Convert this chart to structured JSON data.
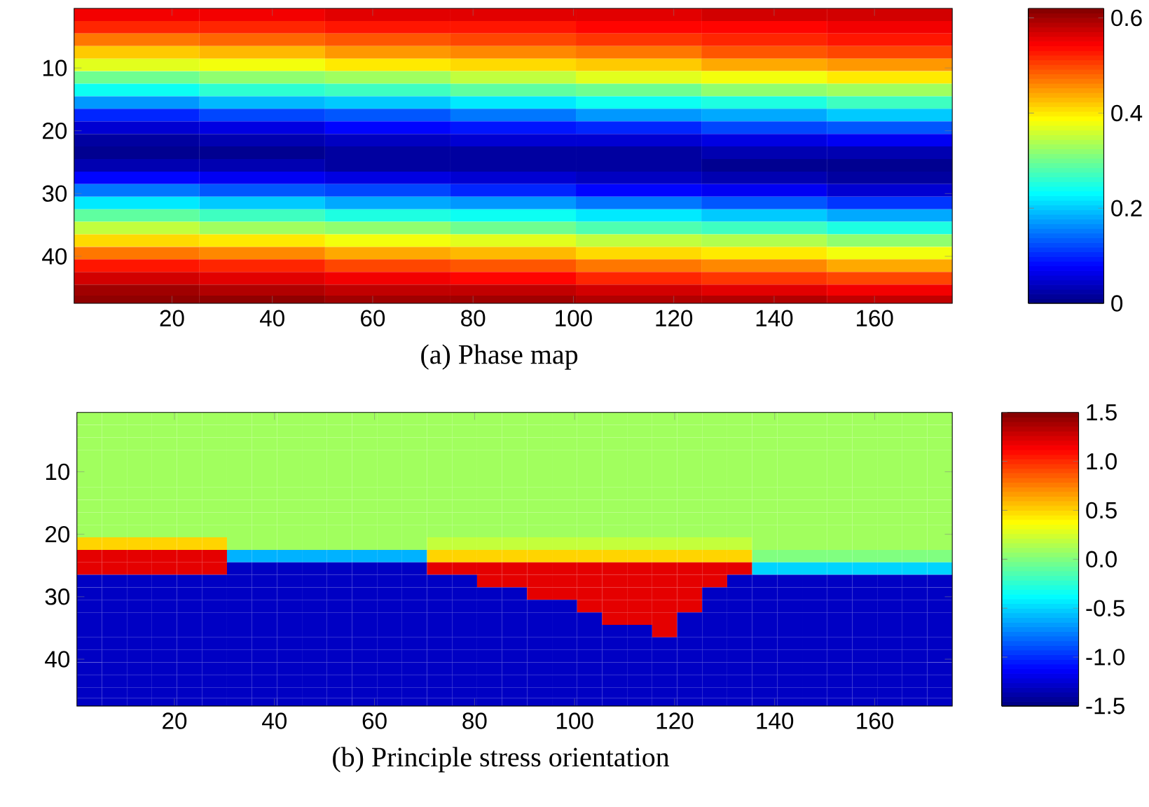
{
  "chart_data": [
    {
      "type": "heatmap",
      "x": [
        13,
        38,
        63,
        88,
        113,
        138,
        163
      ],
      "y": [
        1.5,
        3.5,
        5.5,
        7.5,
        9.5,
        11.5,
        13.5,
        15.5,
        17.5,
        19.5,
        21.5,
        23.5,
        25.5,
        27.5,
        29.5,
        31.5,
        33.5,
        35.5,
        37.5,
        39.5,
        41.5,
        43.5,
        45.5,
        47
      ],
      "xlim": [
        0.5,
        175.5
      ],
      "ylim": [
        47.5,
        0.5
      ],
      "xticks": [
        20,
        40,
        60,
        80,
        100,
        120,
        140,
        160
      ],
      "yticks": [
        10,
        20,
        30,
        40
      ],
      "clim": [
        0,
        0.62
      ],
      "cticks": [
        0,
        0.2,
        0.4,
        0.6
      ],
      "annotations": [
        "(a) Phase map"
      ],
      "cells": [
        [
          0.55,
          0.55,
          0.56,
          0.56,
          0.56,
          0.57,
          0.57
        ],
        [
          0.52,
          0.52,
          0.53,
          0.53,
          0.54,
          0.54,
          0.55
        ],
        [
          0.47,
          0.48,
          0.49,
          0.5,
          0.51,
          0.52,
          0.53
        ],
        [
          0.42,
          0.43,
          0.45,
          0.46,
          0.47,
          0.49,
          0.5
        ],
        [
          0.37,
          0.38,
          0.4,
          0.41,
          0.42,
          0.44,
          0.45
        ],
        [
          0.3,
          0.32,
          0.33,
          0.35,
          0.37,
          0.38,
          0.4
        ],
        [
          0.24,
          0.26,
          0.27,
          0.29,
          0.3,
          0.32,
          0.33
        ],
        [
          0.17,
          0.19,
          0.2,
          0.22,
          0.24,
          0.25,
          0.27
        ],
        [
          0.1,
          0.12,
          0.13,
          0.15,
          0.17,
          0.18,
          0.2
        ],
        [
          0.05,
          0.06,
          0.08,
          0.09,
          0.1,
          0.12,
          0.13
        ],
        [
          0.02,
          0.03,
          0.04,
          0.05,
          0.05,
          0.06,
          0.07
        ],
        [
          0.01,
          0.01,
          0.02,
          0.02,
          0.02,
          0.03,
          0.03
        ],
        [
          0.03,
          0.03,
          0.02,
          0.02,
          0.02,
          0.01,
          0.01
        ],
        [
          0.08,
          0.07,
          0.06,
          0.05,
          0.04,
          0.03,
          0.02
        ],
        [
          0.15,
          0.13,
          0.12,
          0.1,
          0.08,
          0.07,
          0.05
        ],
        [
          0.22,
          0.2,
          0.18,
          0.17,
          0.15,
          0.13,
          0.11
        ],
        [
          0.29,
          0.27,
          0.25,
          0.24,
          0.22,
          0.2,
          0.18
        ],
        [
          0.35,
          0.33,
          0.32,
          0.3,
          0.28,
          0.27,
          0.25
        ],
        [
          0.41,
          0.4,
          0.38,
          0.37,
          0.35,
          0.34,
          0.32
        ],
        [
          0.47,
          0.46,
          0.44,
          0.43,
          0.41,
          0.4,
          0.38
        ],
        [
          0.53,
          0.52,
          0.5,
          0.49,
          0.47,
          0.46,
          0.44
        ],
        [
          0.57,
          0.56,
          0.55,
          0.54,
          0.52,
          0.51,
          0.5
        ],
        [
          0.6,
          0.59,
          0.58,
          0.58,
          0.57,
          0.56,
          0.55
        ],
        [
          0.61,
          0.61,
          0.6,
          0.6,
          0.59,
          0.59,
          0.58
        ]
      ]
    },
    {
      "type": "heatmap",
      "x": [
        3,
        8,
        13,
        18,
        23,
        28,
        33,
        38,
        43,
        48,
        53,
        58,
        63,
        68,
        73,
        78,
        83,
        88,
        93,
        98,
        103,
        108,
        113,
        118,
        123,
        128,
        133,
        138,
        143,
        148,
        153,
        158,
        163,
        168,
        173
      ],
      "y": [
        1.5,
        3.5,
        5.5,
        7.5,
        9.5,
        11.5,
        13.5,
        15.5,
        17.5,
        19.5,
        21.5,
        23.5,
        25.5,
        27.5,
        29.5,
        31.5,
        33.5,
        35.5,
        37.5,
        39.5,
        41.5,
        43.5,
        45.5,
        47
      ],
      "xlim": [
        0.5,
        175.5
      ],
      "ylim": [
        47.5,
        0.5
      ],
      "xticks": [
        20,
        40,
        60,
        80,
        100,
        120,
        140,
        160
      ],
      "yticks": [
        10,
        20,
        30,
        40
      ],
      "clim": [
        -1.5,
        1.5
      ],
      "cticks": [
        {
          "value": -1.5,
          "label": "-1.5"
        },
        {
          "value": -1,
          "label": "-1.0"
        },
        {
          "value": -0.5,
          "label": "-0.5"
        },
        {
          "value": 0,
          "label": "0.0"
        },
        {
          "value": 0.5,
          "label": "0.5"
        },
        {
          "value": 1,
          "label": "1.0"
        },
        {
          "value": 1.5,
          "label": "1.5"
        }
      ],
      "annotations": [
        "(b) Principle stress orientation"
      ],
      "cells": [
        [
          0.1,
          0.1,
          0.1,
          0.1,
          0.1,
          0.1,
          0.1,
          0.1,
          0.1,
          0.1,
          0.1,
          0.1,
          0.1,
          0.1,
          0.1,
          0.1,
          0.1,
          0.1,
          0.1,
          0.1,
          0.1,
          0.1,
          0.1,
          0.1,
          0.1,
          0.1,
          0.1,
          0.1,
          0.1,
          0.1,
          0.1,
          0.1,
          0.1,
          0.1,
          0.1
        ],
        [
          0.1,
          0.1,
          0.1,
          0.1,
          0.1,
          0.1,
          0.1,
          0.1,
          0.1,
          0.1,
          0.1,
          0.1,
          0.1,
          0.1,
          0.1,
          0.1,
          0.1,
          0.1,
          0.1,
          0.1,
          0.1,
          0.1,
          0.1,
          0.1,
          0.1,
          0.1,
          0.1,
          0.1,
          0.1,
          0.1,
          0.1,
          0.1,
          0.1,
          0.1,
          0.1
        ],
        [
          0.1,
          0.1,
          0.1,
          0.1,
          0.1,
          0.1,
          0.1,
          0.1,
          0.1,
          0.1,
          0.1,
          0.1,
          0.1,
          0.1,
          0.1,
          0.1,
          0.1,
          0.1,
          0.1,
          0.1,
          0.1,
          0.1,
          0.1,
          0.1,
          0.1,
          0.1,
          0.1,
          0.1,
          0.1,
          0.1,
          0.1,
          0.1,
          0.1,
          0.1,
          0.1
        ],
        [
          0.1,
          0.1,
          0.1,
          0.1,
          0.1,
          0.1,
          0.1,
          0.1,
          0.1,
          0.1,
          0.1,
          0.1,
          0.1,
          0.1,
          0.1,
          0.1,
          0.1,
          0.1,
          0.1,
          0.1,
          0.1,
          0.1,
          0.1,
          0.1,
          0.1,
          0.1,
          0.1,
          0.1,
          0.1,
          0.1,
          0.1,
          0.1,
          0.1,
          0.1,
          0.1
        ],
        [
          0.1,
          0.1,
          0.1,
          0.1,
          0.1,
          0.1,
          0.1,
          0.1,
          0.1,
          0.1,
          0.1,
          0.1,
          0.1,
          0.1,
          0.1,
          0.1,
          0.1,
          0.1,
          0.1,
          0.1,
          0.1,
          0.1,
          0.1,
          0.1,
          0.1,
          0.1,
          0.1,
          0.1,
          0.1,
          0.1,
          0.1,
          0.1,
          0.1,
          0.1,
          0.1
        ],
        [
          0.1,
          0.1,
          0.1,
          0.1,
          0.1,
          0.1,
          0.1,
          0.1,
          0.1,
          0.1,
          0.1,
          0.1,
          0.1,
          0.1,
          0.1,
          0.1,
          0.1,
          0.1,
          0.1,
          0.1,
          0.1,
          0.1,
          0.1,
          0.1,
          0.1,
          0.1,
          0.1,
          0.1,
          0.1,
          0.1,
          0.1,
          0.1,
          0.1,
          0.1,
          0.1
        ],
        [
          0.1,
          0.1,
          0.1,
          0.1,
          0.1,
          0.1,
          0.1,
          0.1,
          0.1,
          0.1,
          0.1,
          0.1,
          0.1,
          0.1,
          0.1,
          0.1,
          0.1,
          0.1,
          0.1,
          0.1,
          0.1,
          0.1,
          0.1,
          0.1,
          0.1,
          0.1,
          0.1,
          0.1,
          0.1,
          0.1,
          0.1,
          0.1,
          0.1,
          0.1,
          0.1
        ],
        [
          0.1,
          0.1,
          0.1,
          0.1,
          0.1,
          0.1,
          0.1,
          0.1,
          0.1,
          0.1,
          0.1,
          0.1,
          0.1,
          0.1,
          0.1,
          0.1,
          0.1,
          0.1,
          0.1,
          0.1,
          0.1,
          0.1,
          0.1,
          0.1,
          0.1,
          0.1,
          0.1,
          0.1,
          0.1,
          0.1,
          0.1,
          0.1,
          0.1,
          0.1,
          0.1
        ],
        [
          0.1,
          0.1,
          0.1,
          0.1,
          0.1,
          0.1,
          0.1,
          0.1,
          0.1,
          0.1,
          0.1,
          0.1,
          0.1,
          0.1,
          0.1,
          0.1,
          0.1,
          0.1,
          0.1,
          0.1,
          0.1,
          0.1,
          0.1,
          0.1,
          0.1,
          0.1,
          0.1,
          0.1,
          0.1,
          0.1,
          0.1,
          0.1,
          0.1,
          0.1,
          0.1
        ],
        [
          0.1,
          0.1,
          0.1,
          0.1,
          0.1,
          0.1,
          0.1,
          0.1,
          0.1,
          0.1,
          0.1,
          0.1,
          0.1,
          0.1,
          0.1,
          0.1,
          0.1,
          0.1,
          0.1,
          0.1,
          0.1,
          0.1,
          0.1,
          0.1,
          0.1,
          0.1,
          0.1,
          0.1,
          0.1,
          0.1,
          0.1,
          0.1,
          0.1,
          0.1,
          0.1
        ],
        [
          0.5,
          0.5,
          0.5,
          0.5,
          0.5,
          0.5,
          0.1,
          0.1,
          0.1,
          0.1,
          0.1,
          0.1,
          0.1,
          0.1,
          0.2,
          0.2,
          0.2,
          0.2,
          0.2,
          0.2,
          0.2,
          0.2,
          0.2,
          0.2,
          0.2,
          0.2,
          0.2,
          0.1,
          0.1,
          0.1,
          0.1,
          0.1,
          0.1,
          0.1,
          0.1
        ],
        [
          1.2,
          1.2,
          1.2,
          1.2,
          1.2,
          1.2,
          -0.6,
          -0.6,
          -0.6,
          -0.6,
          -0.6,
          -0.6,
          -0.6,
          -0.6,
          0.5,
          0.5,
          0.5,
          0.5,
          0.5,
          0.5,
          0.5,
          0.5,
          0.5,
          0.5,
          0.5,
          0.5,
          0.5,
          0.0,
          0.0,
          0.0,
          0.0,
          0.0,
          0.0,
          0.0,
          0.0
        ],
        [
          1.2,
          1.2,
          1.2,
          1.2,
          1.2,
          1.2,
          -1.3,
          -1.3,
          -1.3,
          -1.3,
          -1.3,
          -1.3,
          -1.3,
          -1.3,
          1.2,
          1.2,
          1.2,
          1.2,
          1.2,
          1.2,
          1.2,
          1.2,
          1.2,
          1.2,
          1.2,
          1.2,
          1.2,
          -0.5,
          -0.5,
          -0.5,
          -0.5,
          -0.5,
          -0.5,
          -0.5,
          -0.5
        ],
        [
          -1.3,
          -1.3,
          -1.3,
          -1.3,
          -1.3,
          -1.3,
          -1.3,
          -1.3,
          -1.3,
          -1.3,
          -1.3,
          -1.3,
          -1.3,
          -1.3,
          -1.3,
          -1.3,
          1.2,
          1.2,
          1.2,
          1.2,
          1.2,
          1.2,
          1.2,
          1.2,
          1.2,
          1.2,
          -1.3,
          -1.3,
          -1.3,
          -1.3,
          -1.3,
          -1.3,
          -1.3,
          -1.3,
          -1.3
        ],
        [
          -1.3,
          -1.3,
          -1.3,
          -1.3,
          -1.3,
          -1.3,
          -1.3,
          -1.3,
          -1.3,
          -1.3,
          -1.3,
          -1.3,
          -1.3,
          -1.3,
          -1.3,
          -1.3,
          -1.3,
          -1.3,
          1.2,
          1.2,
          1.2,
          1.2,
          1.2,
          1.2,
          1.2,
          -1.3,
          -1.3,
          -1.3,
          -1.3,
          -1.3,
          -1.3,
          -1.3,
          -1.3,
          -1.3,
          -1.3
        ],
        [
          -1.3,
          -1.3,
          -1.3,
          -1.3,
          -1.3,
          -1.3,
          -1.3,
          -1.3,
          -1.3,
          -1.3,
          -1.3,
          -1.3,
          -1.3,
          -1.3,
          -1.3,
          -1.3,
          -1.3,
          -1.3,
          -1.3,
          -1.3,
          1.2,
          1.2,
          1.2,
          1.2,
          1.2,
          -1.3,
          -1.3,
          -1.3,
          -1.3,
          -1.3,
          -1.3,
          -1.3,
          -1.3,
          -1.3,
          -1.3
        ],
        [
          -1.3,
          -1.3,
          -1.3,
          -1.3,
          -1.3,
          -1.3,
          -1.3,
          -1.3,
          -1.3,
          -1.3,
          -1.3,
          -1.3,
          -1.3,
          -1.3,
          -1.3,
          -1.3,
          -1.3,
          -1.3,
          -1.3,
          -1.3,
          -1.3,
          1.2,
          1.2,
          1.2,
          -1.3,
          -1.3,
          -1.3,
          -1.3,
          -1.3,
          -1.3,
          -1.3,
          -1.3,
          -1.3,
          -1.3,
          -1.3
        ],
        [
          -1.3,
          -1.3,
          -1.3,
          -1.3,
          -1.3,
          -1.3,
          -1.3,
          -1.3,
          -1.3,
          -1.3,
          -1.3,
          -1.3,
          -1.3,
          -1.3,
          -1.3,
          -1.3,
          -1.3,
          -1.3,
          -1.3,
          -1.3,
          -1.3,
          -1.3,
          -1.3,
          1.2,
          -1.3,
          -1.3,
          -1.3,
          -1.3,
          -1.3,
          -1.3,
          -1.3,
          -1.3,
          -1.3,
          -1.3,
          -1.3
        ],
        [
          -1.3,
          -1.3,
          -1.3,
          -1.3,
          -1.3,
          -1.3,
          -1.3,
          -1.3,
          -1.3,
          -1.3,
          -1.3,
          -1.3,
          -1.3,
          -1.3,
          -1.3,
          -1.3,
          -1.3,
          -1.3,
          -1.3,
          -1.3,
          -1.3,
          -1.3,
          -1.3,
          -1.3,
          -1.3,
          -1.3,
          -1.3,
          -1.3,
          -1.3,
          -1.3,
          -1.3,
          -1.3,
          -1.3,
          -1.3,
          -1.3
        ],
        [
          -1.3,
          -1.3,
          -1.3,
          -1.3,
          -1.3,
          -1.3,
          -1.3,
          -1.3,
          -1.3,
          -1.3,
          -1.3,
          -1.3,
          -1.3,
          -1.3,
          -1.3,
          -1.3,
          -1.3,
          -1.3,
          -1.3,
          -1.3,
          -1.3,
          -1.3,
          -1.3,
          -1.3,
          -1.3,
          -1.3,
          -1.3,
          -1.3,
          -1.3,
          -1.3,
          -1.3,
          -1.3,
          -1.3,
          -1.3,
          -1.3
        ],
        [
          -1.3,
          -1.3,
          -1.3,
          -1.3,
          -1.3,
          -1.3,
          -1.3,
          -1.3,
          -1.3,
          -1.3,
          -1.3,
          -1.3,
          -1.3,
          -1.3,
          -1.3,
          -1.3,
          -1.3,
          -1.3,
          -1.3,
          -1.3,
          -1.3,
          -1.3,
          -1.3,
          -1.3,
          -1.3,
          -1.3,
          -1.3,
          -1.3,
          -1.3,
          -1.3,
          -1.3,
          -1.3,
          -1.3,
          -1.3,
          -1.3
        ],
        [
          -1.3,
          -1.3,
          -1.3,
          -1.3,
          -1.3,
          -1.3,
          -1.3,
          -1.3,
          -1.3,
          -1.3,
          -1.3,
          -1.3,
          -1.3,
          -1.3,
          -1.3,
          -1.3,
          -1.3,
          -1.3,
          -1.3,
          -1.3,
          -1.3,
          -1.3,
          -1.3,
          -1.3,
          -1.3,
          -1.3,
          -1.3,
          -1.3,
          -1.3,
          -1.3,
          -1.3,
          -1.3,
          -1.3,
          -1.3,
          -1.3
        ],
        [
          -1.3,
          -1.3,
          -1.3,
          -1.3,
          -1.3,
          -1.3,
          -1.3,
          -1.3,
          -1.3,
          -1.3,
          -1.3,
          -1.3,
          -1.3,
          -1.3,
          -1.3,
          -1.3,
          -1.3,
          -1.3,
          -1.3,
          -1.3,
          -1.3,
          -1.3,
          -1.3,
          -1.3,
          -1.3,
          -1.3,
          -1.3,
          -1.3,
          -1.3,
          -1.3,
          -1.3,
          -1.3,
          -1.3,
          -1.3,
          -1.3
        ],
        [
          -1.3,
          -1.3,
          -1.3,
          -1.3,
          -1.3,
          -1.3,
          -1.3,
          -1.3,
          -1.3,
          -1.3,
          -1.3,
          -1.3,
          -1.3,
          -1.3,
          -1.3,
          -1.3,
          -1.3,
          -1.3,
          -1.3,
          -1.3,
          -1.3,
          -1.3,
          -1.3,
          -1.3,
          -1.3,
          -1.3,
          -1.3,
          -1.3,
          -1.3,
          -1.3,
          -1.3,
          -1.3,
          -1.3,
          -1.3,
          -1.3
        ]
      ]
    }
  ]
}
